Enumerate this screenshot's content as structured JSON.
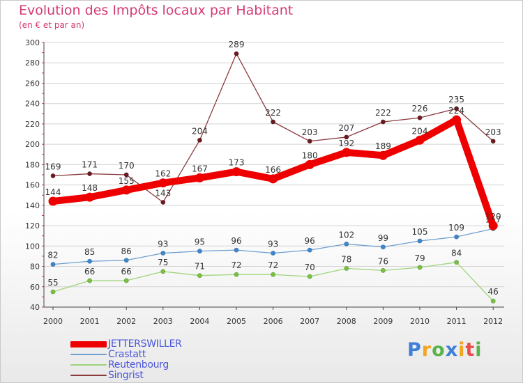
{
  "title": "Evolution des Impôts locaux par Habitant",
  "subtitle": "(en € et par an)",
  "logo_text": "Proxiti",
  "colors": {
    "title": "#d43a73",
    "legend_text": "#4b57d8",
    "grid": "#d3d3d3",
    "axis": "#444444",
    "label": "#333333"
  },
  "chart_data": {
    "type": "line",
    "title": "Evolution des Impôts locaux par Habitant",
    "subtitle": "(en € et par an)",
    "xlabel": "",
    "ylabel": "",
    "ylim": [
      40,
      300
    ],
    "yticks": [
      40,
      60,
      80,
      100,
      120,
      140,
      160,
      180,
      200,
      220,
      240,
      260,
      280,
      300
    ],
    "grid": true,
    "legend_position": "bottom-left",
    "categories": [
      "2000",
      "2001",
      "2002",
      "2003",
      "2004",
      "2005",
      "2006",
      "2007",
      "2008",
      "2009",
      "2010",
      "2011",
      "2012"
    ],
    "series": [
      {
        "name": "JETTERSWILLER",
        "color": "#ee0000",
        "values": [
          144,
          148,
          155,
          162,
          167,
          173,
          166,
          180,
          192,
          189,
          204,
          224,
          120
        ],
        "labels": [
          "144",
          "148",
          "155",
          "162",
          "167",
          "173",
          "166",
          "180",
          "192",
          "189",
          "204",
          "224",
          "120"
        ]
      },
      {
        "name": "Crastatt",
        "color": "#6e9fd0",
        "marker": "#3a86cf",
        "values": [
          82,
          85,
          86,
          93,
          95,
          96,
          93,
          96,
          102,
          99,
          105,
          109,
          117
        ],
        "labels": [
          "82",
          "85",
          "86",
          "93",
          "95",
          "96",
          "93",
          "96",
          "102",
          "99",
          "105",
          "109",
          "117"
        ]
      },
      {
        "name": "Reutenbourg",
        "color": "#9ed47a",
        "marker": "#77c13e",
        "values": [
          55,
          66,
          66,
          75,
          71,
          72,
          72,
          70,
          78,
          76,
          79,
          84,
          46
        ],
        "labels": [
          "55",
          "66",
          "66",
          "75",
          "71",
          "72",
          "72",
          "70",
          "78",
          "76",
          "79",
          "84",
          "46"
        ]
      },
      {
        "name": "Singrist",
        "color": "#8b3a3e",
        "marker": "#6b1a1f",
        "values": [
          169,
          171,
          170,
          143,
          204,
          289,
          222,
          203,
          207,
          222,
          226,
          235,
          203
        ],
        "labels": [
          "169",
          "171",
          "170",
          "143",
          "204",
          "289",
          "222",
          "203",
          "207",
          "222",
          "226",
          "235",
          "203"
        ]
      }
    ]
  }
}
